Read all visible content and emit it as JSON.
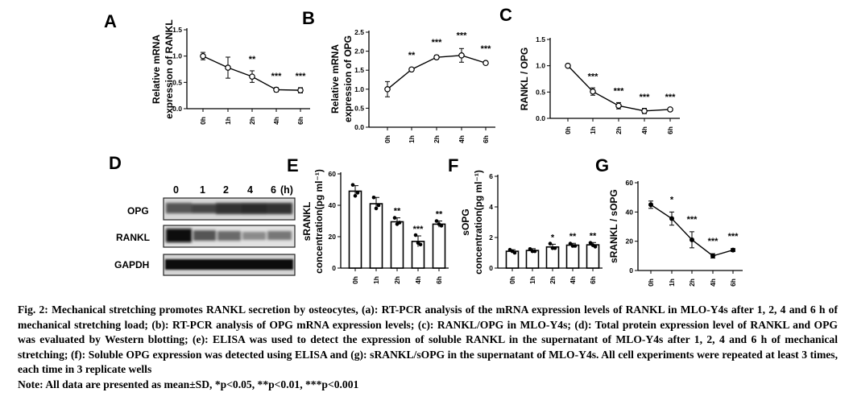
{
  "chart_data": [
    {
      "panel": "A",
      "type": "line",
      "ylabel": "Relative mRNA expression of RANKL",
      "categories": [
        "0h",
        "1h",
        "2h",
        "4h",
        "6h"
      ],
      "values": [
        1.0,
        0.78,
        0.61,
        0.36,
        0.35
      ],
      "errors": [
        0.07,
        0.2,
        0.11,
        0.04,
        0.05
      ],
      "significance": [
        "",
        "",
        "**",
        "***",
        "***"
      ],
      "ylim": [
        0,
        1.5
      ],
      "yticks": [
        "0.0",
        "0.5",
        "1.0",
        "1.5"
      ]
    },
    {
      "panel": "B",
      "type": "line",
      "ylabel": "Relative mRNA expression of OPG",
      "categories": [
        "0h",
        "1h",
        "2h",
        "4h",
        "6h"
      ],
      "values": [
        1.0,
        1.52,
        1.84,
        1.89,
        1.69
      ],
      "errors": [
        0.2,
        0.03,
        0.05,
        0.18,
        0.03
      ],
      "significance": [
        "",
        "**",
        "***",
        "***",
        "***"
      ],
      "ylim": [
        0,
        2.5
      ],
      "yticks": [
        "0.0",
        "0.5",
        "1.0",
        "1.5",
        "2.0",
        "2.5"
      ]
    },
    {
      "panel": "C",
      "type": "line",
      "ylabel": "RANKL / OPG",
      "categories": [
        "0h",
        "1h",
        "2h",
        "4h",
        "6h"
      ],
      "values": [
        1.0,
        0.51,
        0.24,
        0.14,
        0.17
      ],
      "errors": [
        0.02,
        0.07,
        0.06,
        0.05,
        0.02
      ],
      "significance": [
        "",
        "***",
        "***",
        "***",
        "***"
      ],
      "ylim": [
        0,
        1.5
      ],
      "yticks": [
        "0.0",
        "0.5",
        "1.0",
        "1.5"
      ]
    },
    {
      "panel": "E",
      "type": "bar",
      "ylabel": "sRANKL concentration(pg ml⁻¹)",
      "categories": [
        "0h",
        "1h",
        "2h",
        "4h",
        "6h"
      ],
      "values": [
        49,
        41,
        29.5,
        17,
        28
      ],
      "errors": [
        3.5,
        4,
        2.5,
        3.5,
        2
      ],
      "points": [
        [
          53,
          48,
          46
        ],
        [
          45,
          40,
          38
        ],
        [
          32,
          29,
          28
        ],
        [
          21,
          15,
          16
        ],
        [
          30,
          27,
          28
        ]
      ],
      "significance": [
        "",
        "",
        "**",
        "***",
        "**"
      ],
      "ylim": [
        0,
        60
      ],
      "yticks": [
        "0",
        "20",
        "40",
        "60"
      ]
    },
    {
      "panel": "F",
      "type": "bar",
      "ylabel": "sOPG concentration(pg ml⁻¹)",
      "categories": [
        "0h",
        "1h",
        "2h",
        "4h",
        "6h"
      ],
      "values": [
        1.1,
        1.15,
        1.38,
        1.5,
        1.52
      ],
      "errors": [
        0.1,
        0.12,
        0.18,
        0.12,
        0.15
      ],
      "points": [
        [
          1.2,
          1.0,
          1.1
        ],
        [
          1.25,
          1.1,
          1.1
        ],
        [
          1.6,
          1.3,
          1.3
        ],
        [
          1.6,
          1.45,
          1.45
        ],
        [
          1.65,
          1.4,
          1.5
        ]
      ],
      "significance": [
        "",
        "",
        "*",
        "**",
        "**"
      ],
      "ylim": [
        0,
        6
      ],
      "yticks": [
        "0",
        "2",
        "4",
        "6"
      ]
    },
    {
      "panel": "G",
      "type": "line",
      "ylabel": "sRANKL / sOPG",
      "categories": [
        "0h",
        "1h",
        "2h",
        "4h",
        "6h"
      ],
      "values": [
        45,
        35.5,
        21,
        10,
        14
      ],
      "errors": [
        2.5,
        4.5,
        5.5,
        1.5,
        1
      ],
      "significance": [
        "",
        "*",
        "***",
        "***",
        "***"
      ],
      "ylim": [
        0,
        60
      ],
      "yticks": [
        "0",
        "20",
        "40",
        "60"
      ]
    }
  ],
  "panels": {
    "A": "A",
    "B": "B",
    "C": "C",
    "D": "D",
    "E": "E",
    "F": "F",
    "G": "G"
  },
  "blot": {
    "lanes": [
      "0",
      "1",
      "2",
      "4",
      "6"
    ],
    "unit": "(h)",
    "rows": [
      "OPG",
      "RANKL",
      "GAPDH"
    ]
  },
  "caption": {
    "main": "Fig. 2: Mechanical stretching promotes RANKL secretion by osteocytes, (a): RT-PCR analysis of the mRNA expression levels of RANKL in MLO-Y4s after 1, 2, 4 and 6 h of mechanical stretching load; (b): RT-PCR analysis of OPG mRNA expression levels; (c): RANKL/OPG in MLO-Y4s; (d): Total protein expression level of RANKL and OPG was evaluated by Western blotting; (e): ELISA was used to detect the expression of soluble RANKL in the supernatant of MLO-Y4s after 1, 2, 4 and 6 h of mechanical stretching; (f): Soluble OPG expression was detected using ELISA and (g): sRANKL/sOPG in the supernatant of MLO-Y4s. All cell experiments were repeated at least 3 times, each time in 3 replicate wells",
    "note": "Note: All data are presented as mean±SD, *p<0.05, **p<0.01, ***p<0.001"
  }
}
